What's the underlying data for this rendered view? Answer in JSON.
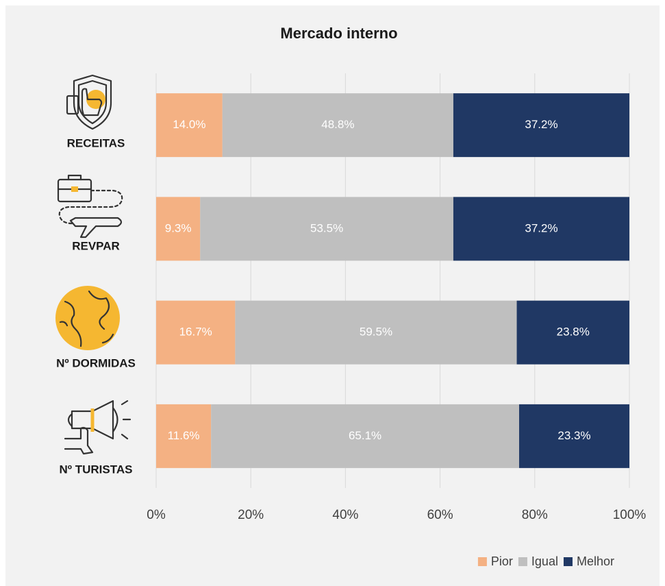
{
  "chart_data": {
    "type": "stacked-bar-horizontal",
    "title": "Mercado interno",
    "categories": [
      "RECEITAS",
      "REVPAR",
      "Nº DORMIDAS",
      "Nº TURISTAS"
    ],
    "series": [
      {
        "name": "Pior",
        "color": "#f4b183",
        "values": [
          14.0,
          9.3,
          16.7,
          11.6
        ],
        "value_labels": [
          "14.0%",
          "9.3%",
          "16.7%",
          "11.6%"
        ]
      },
      {
        "name": "Igual",
        "color": "#bfbfbf",
        "values": [
          48.8,
          53.5,
          59.5,
          65.1
        ],
        "value_labels": [
          "48.8%",
          "53.5%",
          "59.5%",
          "65.1%"
        ]
      },
      {
        "name": "Melhor",
        "color": "#203864",
        "values": [
          37.2,
          37.2,
          23.8,
          23.3
        ],
        "value_labels": [
          "37.2%",
          "37.2%",
          "23.8%",
          "23.3%"
        ]
      }
    ],
    "xlim": [
      0,
      100
    ],
    "xticks": [
      {
        "value": 0,
        "label": "0%"
      },
      {
        "value": 20,
        "label": "20%"
      },
      {
        "value": 40,
        "label": "40%"
      },
      {
        "value": 60,
        "label": "60%"
      },
      {
        "value": 80,
        "label": "80%"
      },
      {
        "value": 100,
        "label": "100%"
      }
    ],
    "grid": true,
    "legend": "bottom-right"
  }
}
